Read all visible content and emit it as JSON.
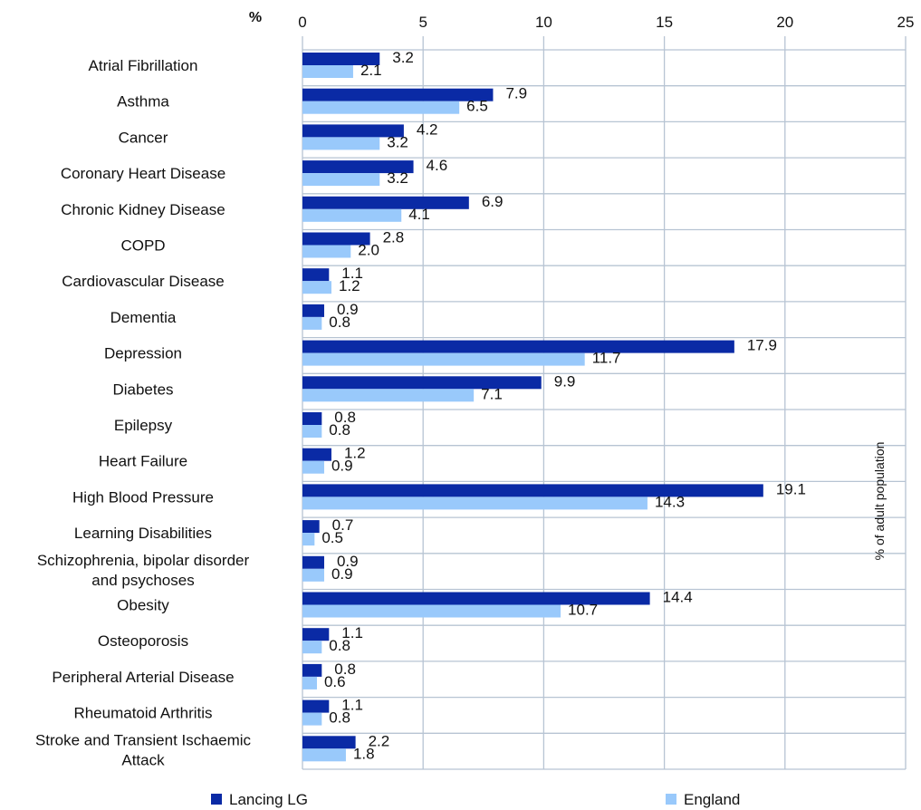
{
  "chart_data": {
    "type": "bar",
    "orientation": "horizontal",
    "unit_label": "%",
    "side_label": "% of adult population",
    "xlim": [
      0,
      25
    ],
    "xticks": [
      "0",
      "5",
      "10",
      "15",
      "20",
      "25"
    ],
    "grid": true,
    "legend_position": "bottom",
    "categories": [
      [
        "Atrial Fibrillation"
      ],
      [
        "Asthma"
      ],
      [
        "Cancer"
      ],
      [
        "Coronary Heart Disease"
      ],
      [
        "Chronic Kidney Disease"
      ],
      [
        "COPD"
      ],
      [
        "Cardiovascular Disease"
      ],
      [
        "Dementia"
      ],
      [
        "Depression"
      ],
      [
        "Diabetes"
      ],
      [
        "Epilepsy"
      ],
      [
        "Heart Failure"
      ],
      [
        "High Blood Pressure"
      ],
      [
        "Learning Disabilities"
      ],
      [
        "Schizophrenia, bipolar disorder",
        "and psychoses"
      ],
      [
        "Obesity"
      ],
      [
        "Osteoporosis"
      ],
      [
        "Peripheral Arterial Disease"
      ],
      [
        "Rheumatoid Arthritis"
      ],
      [
        "Stroke and Transient Ischaemic",
        "Attack"
      ]
    ],
    "series": [
      {
        "name": "Lancing LG",
        "color": "#0a2aa5",
        "values": [
          3.2,
          7.9,
          4.2,
          4.6,
          6.9,
          2.8,
          1.1,
          0.9,
          17.9,
          9.9,
          0.8,
          1.2,
          19.1,
          0.7,
          0.9,
          14.4,
          1.1,
          0.8,
          1.1,
          2.2
        ],
        "labels": [
          "3.2",
          "7.9",
          "4.2",
          "4.6",
          "6.9",
          "2.8",
          "1.1",
          "0.9",
          "17.9",
          "9.9",
          "0.8",
          "1.2",
          "19.1",
          "0.7",
          "0.9",
          "14.4",
          "1.1",
          "0.8",
          "1.1",
          "2.2"
        ]
      },
      {
        "name": "England",
        "color": "#99c9fb",
        "values": [
          2.1,
          6.5,
          3.2,
          3.2,
          4.1,
          2.0,
          1.2,
          0.8,
          11.7,
          7.1,
          0.8,
          0.9,
          14.3,
          0.5,
          0.9,
          10.7,
          0.8,
          0.6,
          0.8,
          1.8
        ],
        "labels": [
          "2.1",
          "6.5",
          "3.2",
          "3.2",
          "4.1",
          "2.0",
          "1.2",
          "0.8",
          "11.7",
          "7.1",
          "0.8",
          "0.9",
          "14.3",
          "0.5",
          "0.9",
          "10.7",
          "0.8",
          "0.6",
          "0.8",
          "1.8"
        ]
      }
    ]
  }
}
